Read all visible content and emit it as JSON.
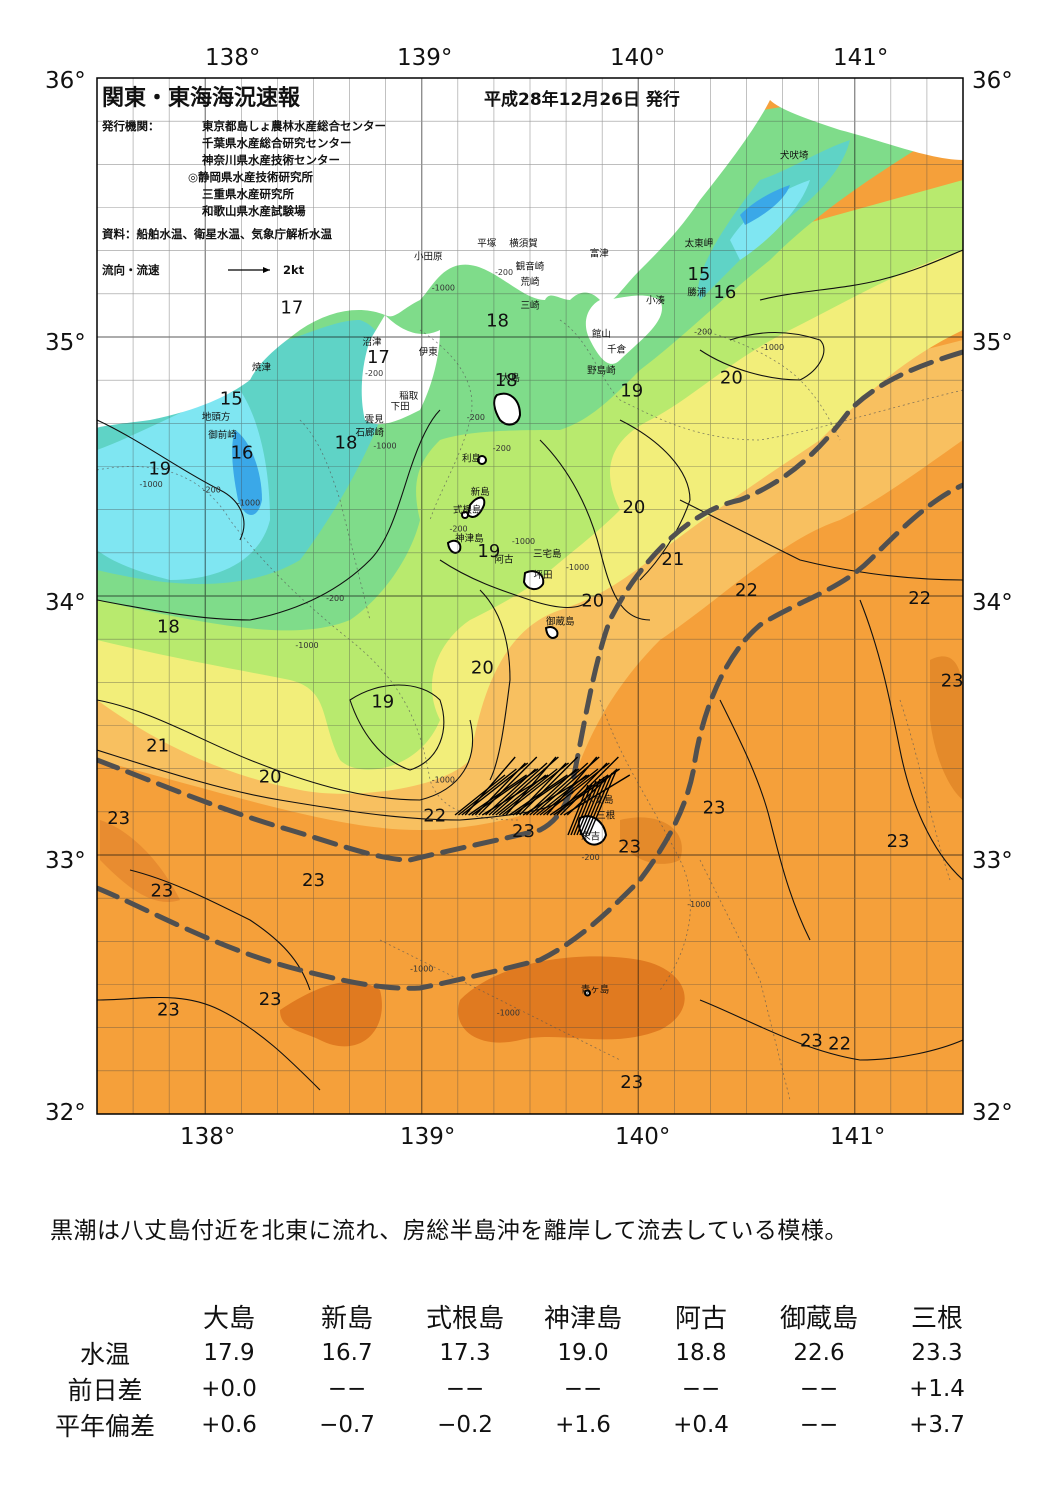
{
  "header": {
    "title": "関東・東海海況速報",
    "date": "平成28年12月26日 発行",
    "issuer_label": "発行機関：",
    "issuers": [
      "東京都島しょ農林水産総合センター",
      "千葉県水産総合研究センター",
      "神奈川県水産技術センター",
      "◎静岡県水産技術研究所",
      "三重県水産研究所",
      "和歌山県水産試験場"
    ],
    "source": "資料：船舶水温、衛星水温、気象庁解析水温",
    "flow_legend_label": "流向・流速",
    "flow_legend_unit": "2kt"
  },
  "map": {
    "lon_labels_top": [
      "138°",
      "139°",
      "140°",
      "141°"
    ],
    "lon_labels_bottom": [
      "138°",
      "139°",
      "140°",
      "141°"
    ],
    "lat_labels_left": [
      "36°",
      "35°",
      "34°",
      "33°",
      "32°"
    ],
    "lat_labels_right": [
      "36°",
      "35°",
      "34°",
      "33°",
      "32°"
    ],
    "isotherm_labels": [
      {
        "t": "17",
        "lon": 138.4,
        "lat": 35.09
      },
      {
        "t": "17",
        "lon": 138.8,
        "lat": 34.9
      },
      {
        "t": "18",
        "lon": 139.35,
        "lat": 35.04
      },
      {
        "t": "15",
        "lon": 138.12,
        "lat": 34.74
      },
      {
        "t": "16",
        "lon": 138.17,
        "lat": 34.53
      },
      {
        "t": "18",
        "lon": 138.65,
        "lat": 34.57
      },
      {
        "t": "19",
        "lon": 137.79,
        "lat": 34.47
      },
      {
        "t": "18",
        "lon": 137.83,
        "lat": 33.86
      },
      {
        "t": "19",
        "lon": 139.31,
        "lat": 34.15
      },
      {
        "t": "20",
        "lon": 139.79,
        "lat": 33.96
      },
      {
        "t": "20",
        "lon": 139.98,
        "lat": 34.32
      },
      {
        "t": "21",
        "lon": 140.16,
        "lat": 34.12
      },
      {
        "t": "22",
        "lon": 140.5,
        "lat": 34.0
      },
      {
        "t": "22",
        "lon": 141.3,
        "lat": 33.97
      },
      {
        "t": "19",
        "lon": 139.97,
        "lat": 34.77
      },
      {
        "t": "20",
        "lon": 140.43,
        "lat": 34.82
      },
      {
        "t": "15",
        "lon": 140.28,
        "lat": 35.22
      },
      {
        "t": "16",
        "lon": 140.4,
        "lat": 35.15
      },
      {
        "t": "18",
        "lon": 139.39,
        "lat": 34.81
      },
      {
        "t": "20",
        "lon": 139.28,
        "lat": 33.7
      },
      {
        "t": "19",
        "lon": 138.82,
        "lat": 33.57
      },
      {
        "t": "21",
        "lon": 137.78,
        "lat": 33.4
      },
      {
        "t": "20",
        "lon": 138.3,
        "lat": 33.28
      },
      {
        "t": "22",
        "lon": 139.06,
        "lat": 33.13
      },
      {
        "t": "23",
        "lon": 137.6,
        "lat": 33.12
      },
      {
        "t": "23",
        "lon": 139.47,
        "lat": 33.07
      },
      {
        "t": "23",
        "lon": 139.96,
        "lat": 33.01
      },
      {
        "t": "23",
        "lon": 140.35,
        "lat": 33.16
      },
      {
        "t": "23",
        "lon": 141.2,
        "lat": 33.03
      },
      {
        "t": "23",
        "lon": 141.45,
        "lat": 33.65
      },
      {
        "t": "23",
        "lon": 137.8,
        "lat": 32.84
      },
      {
        "t": "23",
        "lon": 138.5,
        "lat": 32.88
      },
      {
        "t": "23",
        "lon": 138.3,
        "lat": 32.42
      },
      {
        "t": "23",
        "lon": 137.83,
        "lat": 32.38
      },
      {
        "t": "23",
        "lon": 140.8,
        "lat": 32.26
      },
      {
        "t": "22",
        "lon": 140.93,
        "lat": 32.25
      },
      {
        "t": "23",
        "lon": 139.97,
        "lat": 32.1
      }
    ],
    "place_labels": [
      {
        "t": "犬吠埼",
        "lon": 140.72,
        "lat": 35.69
      },
      {
        "t": "太東岬",
        "lon": 140.28,
        "lat": 35.35
      },
      {
        "t": "勝浦",
        "lon": 140.27,
        "lat": 35.16
      },
      {
        "t": "小湊",
        "lon": 140.08,
        "lat": 35.13
      },
      {
        "t": "富津",
        "lon": 139.82,
        "lat": 35.31
      },
      {
        "t": "館山",
        "lon": 139.83,
        "lat": 35.0
      },
      {
        "t": "千倉",
        "lon": 139.9,
        "lat": 34.94
      },
      {
        "t": "野島崎",
        "lon": 139.83,
        "lat": 34.86
      },
      {
        "t": "横須賀",
        "lon": 139.47,
        "lat": 35.35
      },
      {
        "t": "観音崎",
        "lon": 139.5,
        "lat": 35.26
      },
      {
        "t": "荒崎",
        "lon": 139.5,
        "lat": 35.2
      },
      {
        "t": "三崎",
        "lon": 139.5,
        "lat": 35.11
      },
      {
        "t": "平塚",
        "lon": 139.3,
        "lat": 35.35
      },
      {
        "t": "小田原",
        "lon": 139.03,
        "lat": 35.3
      },
      {
        "t": "伊東",
        "lon": 139.03,
        "lat": 34.93
      },
      {
        "t": "沼津",
        "lon": 138.77,
        "lat": 34.97
      },
      {
        "t": "焼津",
        "lon": 138.26,
        "lat": 34.87
      },
      {
        "t": "稲取",
        "lon": 138.94,
        "lat": 34.76
      },
      {
        "t": "下田",
        "lon": 138.9,
        "lat": 34.72
      },
      {
        "t": "雲見",
        "lon": 138.78,
        "lat": 34.67
      },
      {
        "t": "石廊崎",
        "lon": 138.76,
        "lat": 34.62
      },
      {
        "t": "地頭方",
        "lon": 138.05,
        "lat": 34.68
      },
      {
        "t": "御前崎",
        "lon": 138.08,
        "lat": 34.61
      },
      {
        "t": "大島",
        "lon": 139.41,
        "lat": 34.83
      },
      {
        "t": "利島",
        "lon": 139.23,
        "lat": 34.52
      },
      {
        "t": "新島",
        "lon": 139.27,
        "lat": 34.39
      },
      {
        "t": "式根島",
        "lon": 139.21,
        "lat": 34.32
      },
      {
        "t": "神津島",
        "lon": 139.22,
        "lat": 34.21
      },
      {
        "t": "三宅島",
        "lon": 139.58,
        "lat": 34.15
      },
      {
        "t": "阿古",
        "lon": 139.38,
        "lat": 34.13
      },
      {
        "t": "坪田",
        "lon": 139.56,
        "lat": 34.07
      },
      {
        "t": "御蔵島",
        "lon": 139.64,
        "lat": 33.89
      },
      {
        "t": "八丈島",
        "lon": 139.82,
        "lat": 33.2
      },
      {
        "t": "三根",
        "lon": 139.85,
        "lat": 33.14
      },
      {
        "t": "末吉",
        "lon": 139.78,
        "lat": 33.06
      },
      {
        "t": "青ヶ島",
        "lon": 139.8,
        "lat": 32.47
      }
    ],
    "depth_labels": [
      {
        "t": "-1000",
        "lon": 138.83,
        "lat": 34.57
      },
      {
        "t": "-200",
        "lon": 138.78,
        "lat": 34.85
      },
      {
        "t": "-200",
        "lon": 138.03,
        "lat": 34.4
      },
      {
        "t": "-1000",
        "lon": 137.75,
        "lat": 34.42
      },
      {
        "t": "-1000",
        "lon": 138.2,
        "lat": 34.35
      },
      {
        "t": "-200",
        "lon": 138.6,
        "lat": 33.98
      },
      {
        "t": "-1000",
        "lon": 138.47,
        "lat": 33.8
      },
      {
        "t": "-1000",
        "lon": 139.1,
        "lat": 33.28
      },
      {
        "t": "-1000",
        "lon": 140.28,
        "lat": 32.8
      },
      {
        "t": "-1000",
        "lon": 139.0,
        "lat": 32.55
      },
      {
        "t": "-1000",
        "lon": 139.4,
        "lat": 32.38
      },
      {
        "t": "-200",
        "lon": 139.25,
        "lat": 34.68
      },
      {
        "t": "-200",
        "lon": 139.37,
        "lat": 34.56
      },
      {
        "t": "-200",
        "lon": 139.17,
        "lat": 34.25
      },
      {
        "t": "-1000",
        "lon": 139.47,
        "lat": 34.2
      },
      {
        "t": "-1000",
        "lon": 139.72,
        "lat": 34.1
      },
      {
        "t": "-1000",
        "lon": 140.62,
        "lat": 34.95
      },
      {
        "t": "-200",
        "lon": 140.3,
        "lat": 35.01
      },
      {
        "t": "-1000",
        "lon": 139.1,
        "lat": 35.18
      },
      {
        "t": "-200",
        "lon": 139.38,
        "lat": 35.24
      },
      {
        "t": "-200",
        "lon": 139.78,
        "lat": 32.98
      }
    ]
  },
  "summary": "黒潮は八丈島付近を北東に流れ、房総半島沖を離岸して流去している模様。",
  "stats": {
    "columns": [
      "大島",
      "新島",
      "式根島",
      "神津島",
      "阿古",
      "御蔵島",
      "三根"
    ],
    "rows": [
      {
        "label": "水温",
        "values": [
          "17.9",
          "16.7",
          "17.3",
          "19.0",
          "18.8",
          "22.6",
          "23.3"
        ]
      },
      {
        "label": "前日差",
        "values": [
          "+0.0",
          "−−",
          "−−",
          "−−",
          "−−",
          "−−",
          "+1.4"
        ]
      },
      {
        "label": "平年偏差",
        "values": [
          "+0.6",
          "−0.7",
          "−0.2",
          "+1.6",
          "+0.4",
          "−−",
          "+3.7"
        ]
      }
    ]
  }
}
